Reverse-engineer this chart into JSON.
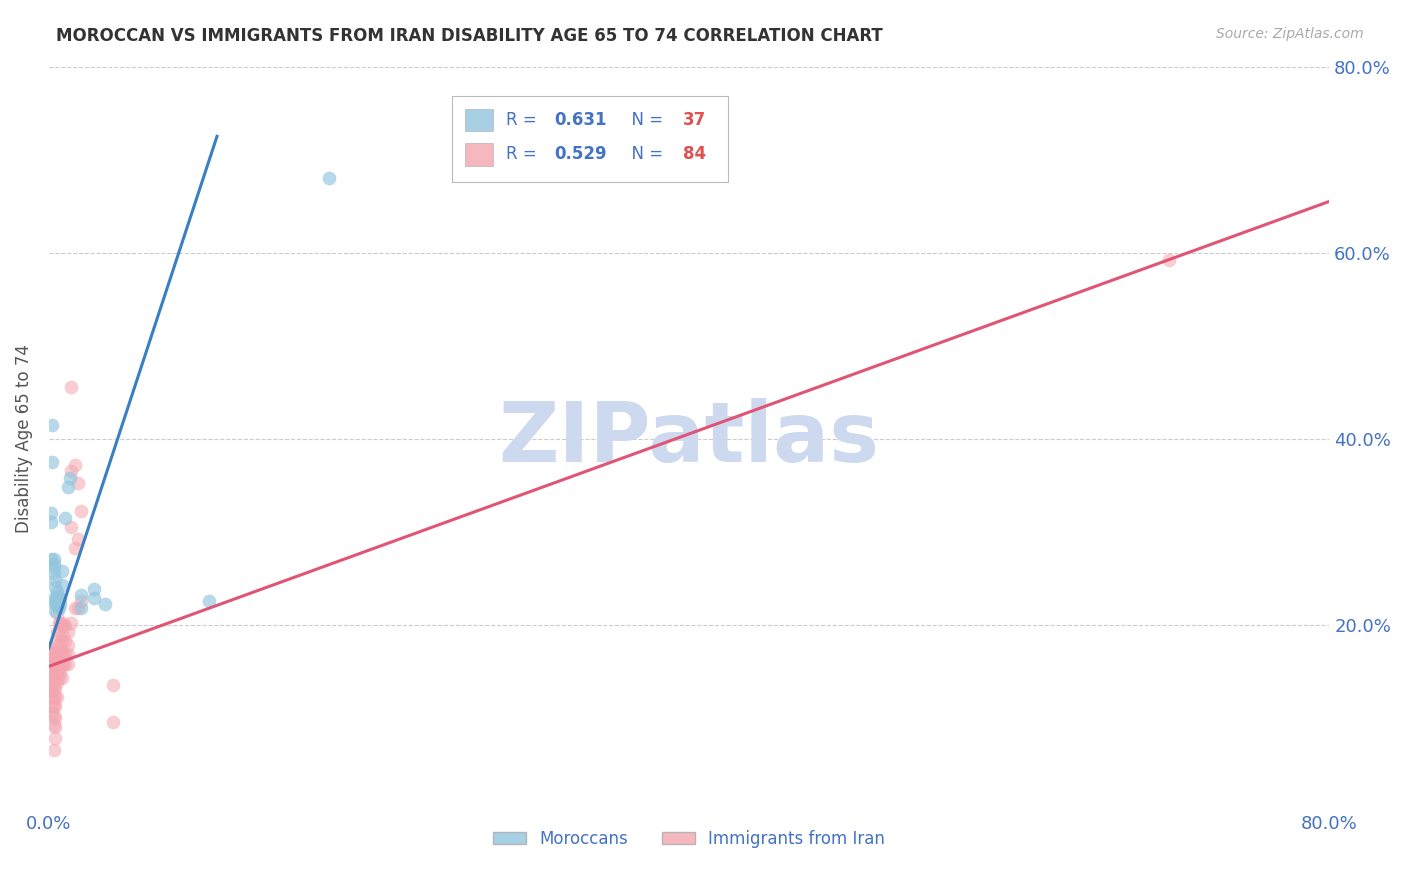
{
  "title": "MOROCCAN VS IMMIGRANTS FROM IRAN DISABILITY AGE 65 TO 74 CORRELATION CHART",
  "source": "Source: ZipAtlas.com",
  "ylabel": "Disability Age 65 to 74",
  "xlim": [
    0,
    0.8
  ],
  "ylim": [
    0,
    0.8
  ],
  "xtick_positions": [
    0.0,
    0.1,
    0.2,
    0.3,
    0.4,
    0.5,
    0.6,
    0.7,
    0.8
  ],
  "xtick_labels": [
    "0.0%",
    "",
    "",
    "",
    "",
    "",
    "",
    "",
    "80.0%"
  ],
  "ytick_positions": [
    0.2,
    0.4,
    0.6,
    0.8
  ],
  "ytick_labels": [
    "20.0%",
    "40.0%",
    "60.0%",
    "80.0%"
  ],
  "legend_label1": "Moroccans",
  "legend_label2": "Immigrants from Iran",
  "R1": "0.631",
  "N1": "37",
  "R2": "0.529",
  "N2": "84",
  "color_blue": "#92c5de",
  "color_pink": "#f4a6b0",
  "color_blue_line": "#3a7fc1",
  "color_pink_line": "#e05575",
  "color_title": "#333333",
  "color_axis_label": "#555555",
  "color_tick_label": "#4472c4",
  "color_watermark": "#cdd9ee",
  "color_grid": "#cccccc",
  "watermark_text": "ZIPatlas",
  "blue_line_x": [
    0.0,
    0.105
  ],
  "blue_line_y": [
    0.175,
    0.725
  ],
  "pink_line_x": [
    0.0,
    0.8
  ],
  "pink_line_y": [
    0.155,
    0.655
  ],
  "scatter_blue": [
    [
      0.001,
      0.27
    ],
    [
      0.001,
      0.31
    ],
    [
      0.001,
      0.32
    ],
    [
      0.002,
      0.375
    ],
    [
      0.002,
      0.415
    ],
    [
      0.003,
      0.225
    ],
    [
      0.003,
      0.255
    ],
    [
      0.003,
      0.262
    ],
    [
      0.003,
      0.265
    ],
    [
      0.003,
      0.27
    ],
    [
      0.004,
      0.215
    ],
    [
      0.004,
      0.222
    ],
    [
      0.004,
      0.23
    ],
    [
      0.004,
      0.24
    ],
    [
      0.004,
      0.248
    ],
    [
      0.005,
      0.222
    ],
    [
      0.005,
      0.228
    ],
    [
      0.005,
      0.235
    ],
    [
      0.005,
      0.22
    ],
    [
      0.005,
      0.225
    ],
    [
      0.006,
      0.218
    ],
    [
      0.006,
      0.225
    ],
    [
      0.006,
      0.23
    ],
    [
      0.007,
      0.222
    ],
    [
      0.007,
      0.228
    ],
    [
      0.008,
      0.242
    ],
    [
      0.008,
      0.258
    ],
    [
      0.01,
      0.315
    ],
    [
      0.012,
      0.348
    ],
    [
      0.013,
      0.358
    ],
    [
      0.02,
      0.218
    ],
    [
      0.02,
      0.232
    ],
    [
      0.028,
      0.228
    ],
    [
      0.028,
      0.238
    ],
    [
      0.035,
      0.222
    ],
    [
      0.1,
      0.225
    ],
    [
      0.175,
      0.68
    ]
  ],
  "scatter_pink": [
    [
      0.001,
      0.17
    ],
    [
      0.001,
      0.175
    ],
    [
      0.001,
      0.16
    ],
    [
      0.001,
      0.145
    ],
    [
      0.001,
      0.135
    ],
    [
      0.001,
      0.128
    ],
    [
      0.002,
      0.168
    ],
    [
      0.002,
      0.162
    ],
    [
      0.002,
      0.148
    ],
    [
      0.002,
      0.133
    ],
    [
      0.002,
      0.128
    ],
    [
      0.002,
      0.122
    ],
    [
      0.002,
      0.112
    ],
    [
      0.002,
      0.105
    ],
    [
      0.003,
      0.168
    ],
    [
      0.003,
      0.158
    ],
    [
      0.003,
      0.152
    ],
    [
      0.003,
      0.142
    ],
    [
      0.003,
      0.132
    ],
    [
      0.003,
      0.122
    ],
    [
      0.003,
      0.112
    ],
    [
      0.003,
      0.102
    ],
    [
      0.003,
      0.092
    ],
    [
      0.003,
      0.065
    ],
    [
      0.004,
      0.162
    ],
    [
      0.004,
      0.158
    ],
    [
      0.004,
      0.152
    ],
    [
      0.004,
      0.142
    ],
    [
      0.004,
      0.132
    ],
    [
      0.004,
      0.122
    ],
    [
      0.004,
      0.112
    ],
    [
      0.004,
      0.1
    ],
    [
      0.004,
      0.09
    ],
    [
      0.004,
      0.078
    ],
    [
      0.005,
      0.212
    ],
    [
      0.005,
      0.192
    ],
    [
      0.005,
      0.178
    ],
    [
      0.005,
      0.168
    ],
    [
      0.005,
      0.158
    ],
    [
      0.005,
      0.148
    ],
    [
      0.005,
      0.138
    ],
    [
      0.005,
      0.122
    ],
    [
      0.006,
      0.202
    ],
    [
      0.006,
      0.188
    ],
    [
      0.006,
      0.172
    ],
    [
      0.006,
      0.162
    ],
    [
      0.006,
      0.152
    ],
    [
      0.006,
      0.142
    ],
    [
      0.007,
      0.202
    ],
    [
      0.007,
      0.178
    ],
    [
      0.007,
      0.168
    ],
    [
      0.007,
      0.158
    ],
    [
      0.007,
      0.148
    ],
    [
      0.008,
      0.198
    ],
    [
      0.008,
      0.182
    ],
    [
      0.008,
      0.168
    ],
    [
      0.008,
      0.158
    ],
    [
      0.008,
      0.142
    ],
    [
      0.009,
      0.202
    ],
    [
      0.009,
      0.188
    ],
    [
      0.009,
      0.168
    ],
    [
      0.009,
      0.158
    ],
    [
      0.01,
      0.198
    ],
    [
      0.01,
      0.182
    ],
    [
      0.01,
      0.168
    ],
    [
      0.01,
      0.158
    ],
    [
      0.012,
      0.192
    ],
    [
      0.012,
      0.178
    ],
    [
      0.012,
      0.168
    ],
    [
      0.012,
      0.158
    ],
    [
      0.014,
      0.455
    ],
    [
      0.014,
      0.365
    ],
    [
      0.014,
      0.305
    ],
    [
      0.014,
      0.202
    ],
    [
      0.016,
      0.372
    ],
    [
      0.016,
      0.282
    ],
    [
      0.016,
      0.218
    ],
    [
      0.018,
      0.352
    ],
    [
      0.018,
      0.292
    ],
    [
      0.018,
      0.218
    ],
    [
      0.02,
      0.322
    ],
    [
      0.02,
      0.225
    ],
    [
      0.04,
      0.135
    ],
    [
      0.04,
      0.095
    ],
    [
      0.7,
      0.592
    ]
  ]
}
